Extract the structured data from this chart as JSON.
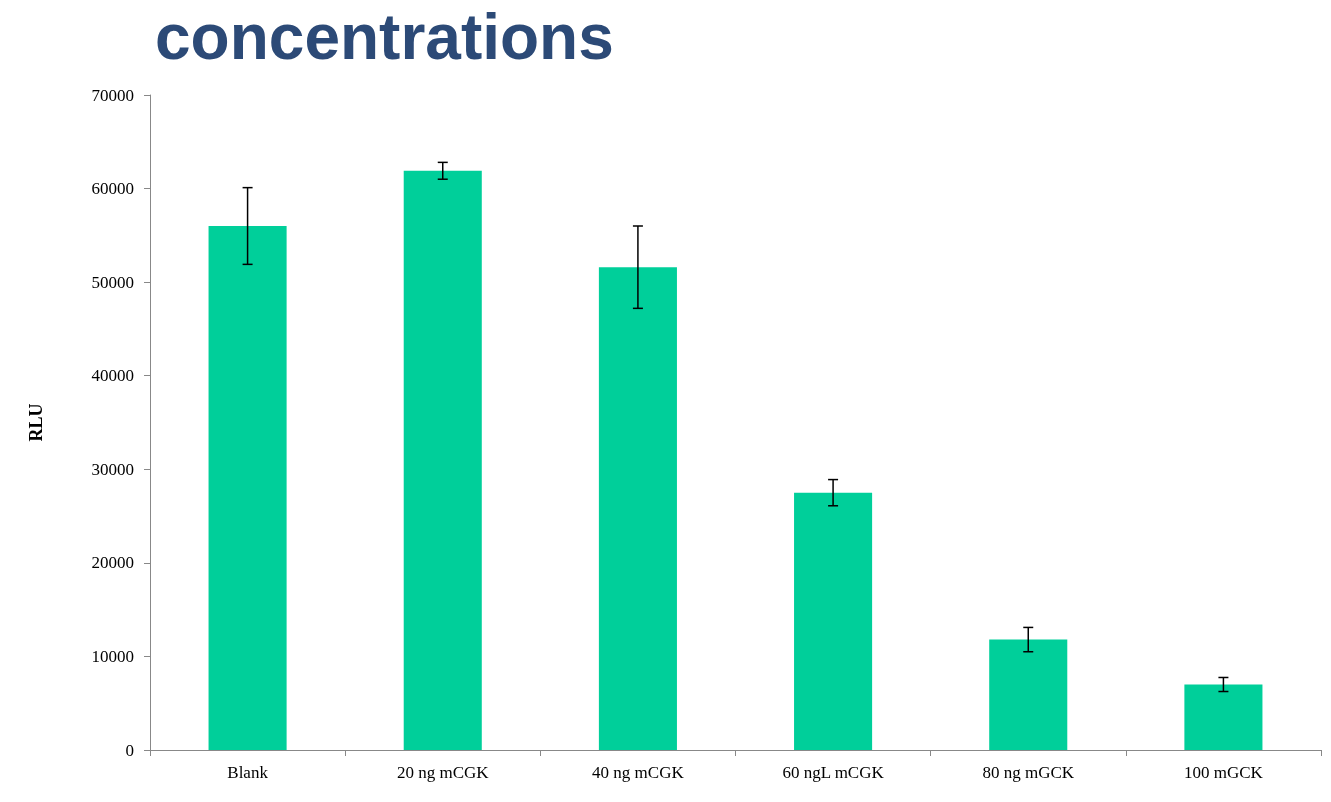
{
  "chart_data": {
    "type": "bar",
    "title": "concentrations",
    "ylabel": "RLU",
    "categories": [
      "Blank",
      "20 ng mCGK",
      "40 ng mCGK",
      "60 ngL mCGK",
      "80 ng mGCK",
      "100 mGCK"
    ],
    "values": [
      56000,
      61900,
      51600,
      27500,
      11800,
      7000
    ],
    "errors": [
      4100,
      900,
      4400,
      1400,
      1300,
      750
    ],
    "color": "#00cf9a",
    "ylim": [
      0,
      70000
    ],
    "yticks": [
      0,
      10000,
      20000,
      30000,
      40000,
      50000,
      60000,
      70000
    ],
    "grid": false
  }
}
